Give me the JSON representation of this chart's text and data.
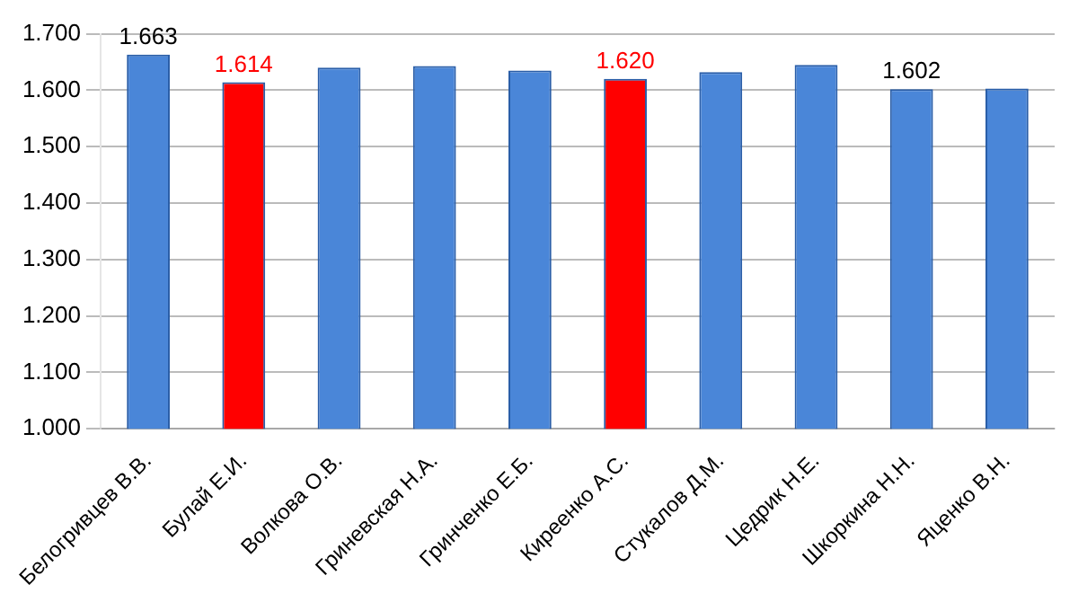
{
  "chart_data": {
    "type": "bar",
    "categories": [
      "Белогривцев В.В.",
      "Булай Е.И.",
      "Волкова О.В.",
      "Гриневская Н.А.",
      "Гринченко Е.Б.",
      "Киреенко А.С.",
      "Стукалов Д.М.",
      "Цедрик Н.Е.",
      "Шкоркина Н.Н.",
      "Яценко В.Н."
    ],
    "values": [
      1.663,
      1.614,
      1.64,
      1.643,
      1.635,
      1.62,
      1.632,
      1.645,
      1.602,
      1.603
    ],
    "colors": [
      "#4a86d8",
      "#ff0000",
      "#4a86d8",
      "#4a86d8",
      "#4a86d8",
      "#ff0000",
      "#4a86d8",
      "#4a86d8",
      "#4a86d8",
      "#4a86d8"
    ],
    "value_labels": [
      "1.663",
      "1.614",
      null,
      null,
      null,
      "1.620",
      null,
      null,
      "1.602",
      null
    ],
    "ylim": [
      1.0,
      1.7
    ],
    "yticks": [
      {
        "value": 1.0,
        "label": "1.000"
      },
      {
        "value": 1.1,
        "label": "1.100"
      },
      {
        "value": 1.2,
        "label": "1.200"
      },
      {
        "value": 1.3,
        "label": "1.300"
      },
      {
        "value": 1.4,
        "label": "1.400"
      },
      {
        "value": 1.5,
        "label": "1.500"
      },
      {
        "value": 1.6,
        "label": "1.600"
      },
      {
        "value": 1.7,
        "label": "1.700"
      }
    ],
    "grid": "y",
    "legend": false
  }
}
